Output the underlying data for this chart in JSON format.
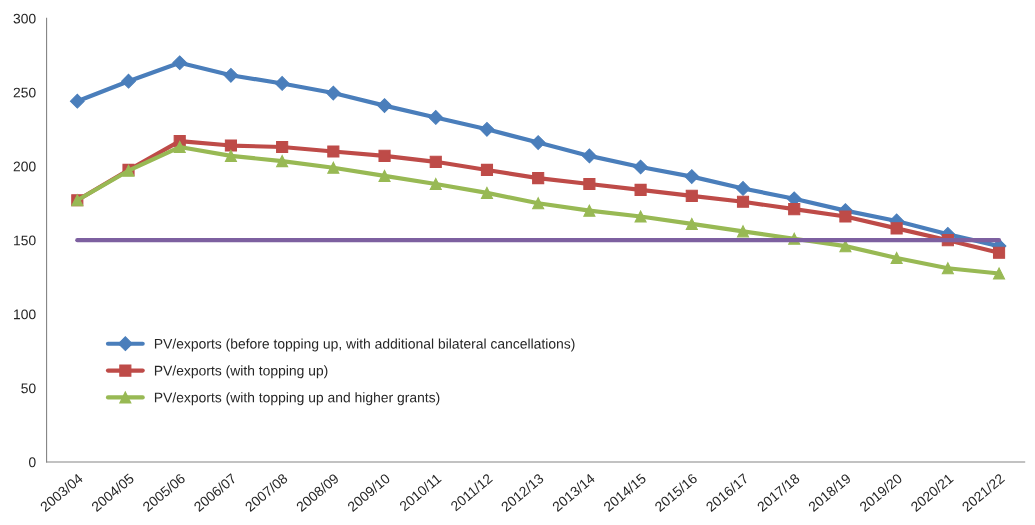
{
  "chart_data": {
    "type": "line",
    "categories": [
      "2003/04",
      "2004/05",
      "2005/06",
      "2006/07",
      "2007/08",
      "2008/09",
      "2009/10",
      "2010/11",
      "2011/12",
      "2012/13",
      "2013/14",
      "2014/15",
      "2015/16",
      "2016/17",
      "2017/18",
      "2018/19",
      "2019/20",
      "2020/21",
      "2021/22"
    ],
    "series": [
      {
        "name": "PV/exports (before topping up, with additional bilateral cancellations)",
        "color": "#4a7ebb",
        "marker": "diamond",
        "values": [
          244,
          257.5,
          270,
          261.5,
          256,
          249.5,
          241,
          233,
          225,
          216,
          207,
          199.5,
          193,
          185,
          178,
          170,
          163,
          154,
          146
        ]
      },
      {
        "name": "PV/exports (with topping up)",
        "color": "#be4b48",
        "marker": "square",
        "values": [
          177,
          197.5,
          217,
          214,
          213,
          210,
          207,
          203,
          197.5,
          192,
          188,
          184,
          180,
          176,
          171,
          166,
          158,
          150,
          141.5
        ]
      },
      {
        "name": "PV/exports (with topping up and higher grants)",
        "color": "#98b954",
        "marker": "triangle",
        "values": [
          177,
          197,
          213,
          207,
          203.5,
          199,
          193.5,
          188,
          182,
          175,
          170,
          166,
          161,
          156,
          151,
          146,
          138,
          131,
          127.5
        ]
      },
      {
        "color": "#7d60a0",
        "marker": "none",
        "values": [
          150,
          150,
          150,
          150,
          150,
          150,
          150,
          150,
          150,
          150,
          150,
          150,
          150,
          150,
          150,
          150,
          150,
          150,
          150
        ]
      }
    ],
    "ylim": [
      0,
      300
    ],
    "yticks": [
      0,
      50,
      100,
      150,
      200,
      250,
      300
    ],
    "grid": false,
    "legend": "bottom left"
  }
}
